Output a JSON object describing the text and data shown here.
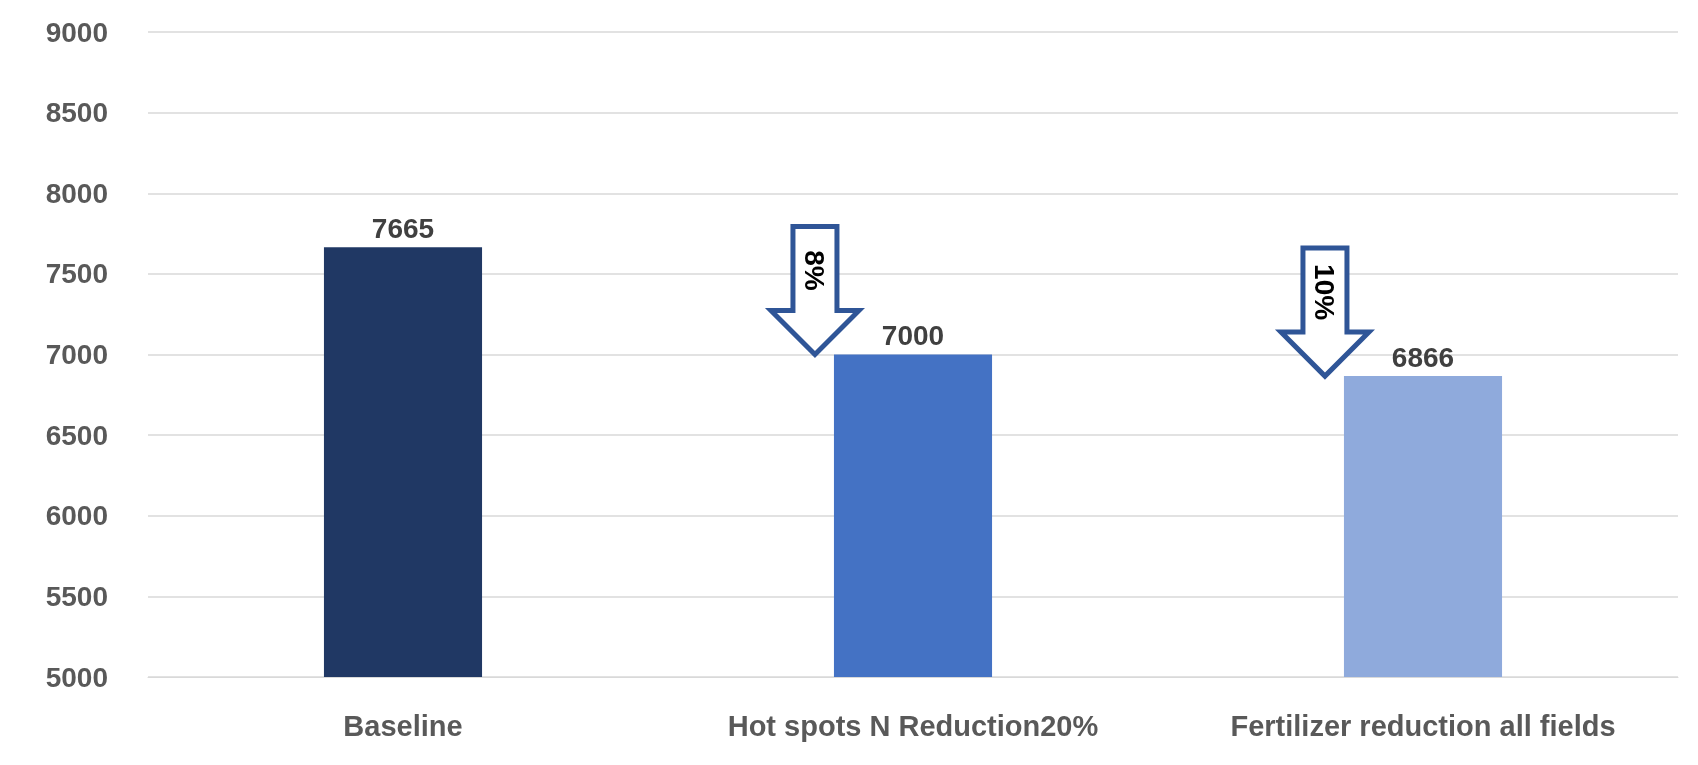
{
  "chart_data": {
    "type": "bar",
    "categories": [
      "Baseline",
      "Hot spots N Reduction20%",
      "Fertilizer reduction all fields"
    ],
    "values": [
      7665,
      7000,
      6866
    ],
    "colors": [
      "#203864",
      "#4472c4",
      "#8faadc"
    ],
    "ylim": [
      5000,
      9000
    ],
    "yticks": [
      5000,
      5500,
      6000,
      6500,
      7000,
      7500,
      8000,
      8500,
      9000
    ],
    "grid": "y",
    "data_labels": true,
    "annotations": [
      "8%",
      "10%"
    ]
  }
}
